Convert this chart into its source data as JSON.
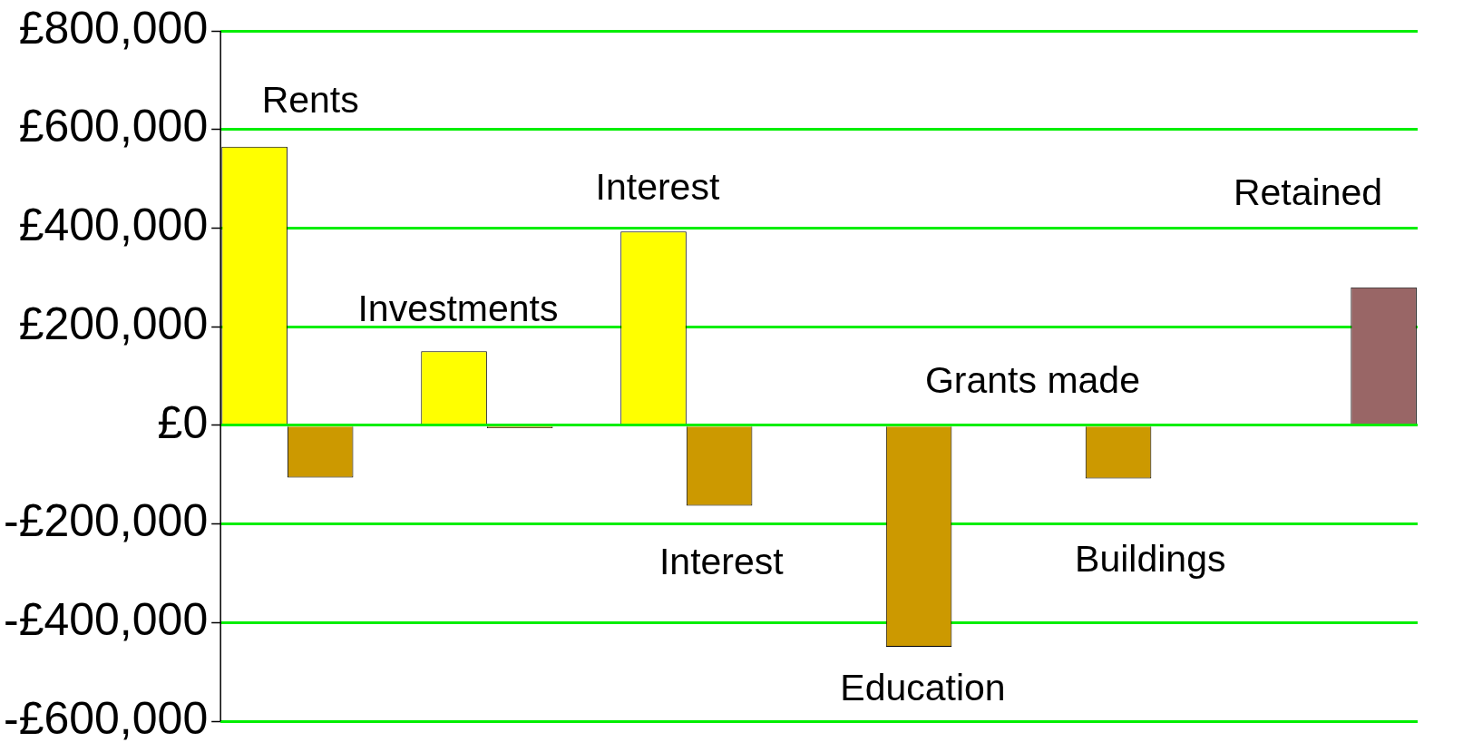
{
  "chart_data": {
    "type": "bar",
    "categories": [
      null,
      null,
      null,
      null,
      null,
      null
    ],
    "series": [
      {
        "color": "#ffff00",
        "values": [
          565000,
          150000,
          393000,
          null,
          null,
          null
        ]
      },
      {
        "color": "#cc9900",
        "values": [
          -106000,
          -6000,
          -163000,
          -449000,
          -108000,
          null
        ]
      },
      {
        "color": "#996666",
        "values": [
          null,
          null,
          null,
          null,
          null,
          280000
        ]
      }
    ],
    "ylim": [
      -600000,
      800000
    ],
    "yticks": [
      {
        "value": -600000,
        "label": "-£600,000"
      },
      {
        "value": -400000,
        "label": "-£400,000"
      },
      {
        "value": -200000,
        "label": "-£200,000"
      },
      {
        "value": 0,
        "label": "£0"
      },
      {
        "value": 200000,
        "label": "£200,000"
      },
      {
        "value": 400000,
        "label": "£400,000"
      },
      {
        "value": 600000,
        "label": "£600,000"
      },
      {
        "value": 800000,
        "label": "£800,000"
      }
    ],
    "grid": "y",
    "tick_labels": "y",
    "annotations": [
      "Rents",
      "Investments",
      "Interest",
      "Interest",
      "Grants made",
      "Education",
      "Buildings",
      "Retained"
    ]
  }
}
